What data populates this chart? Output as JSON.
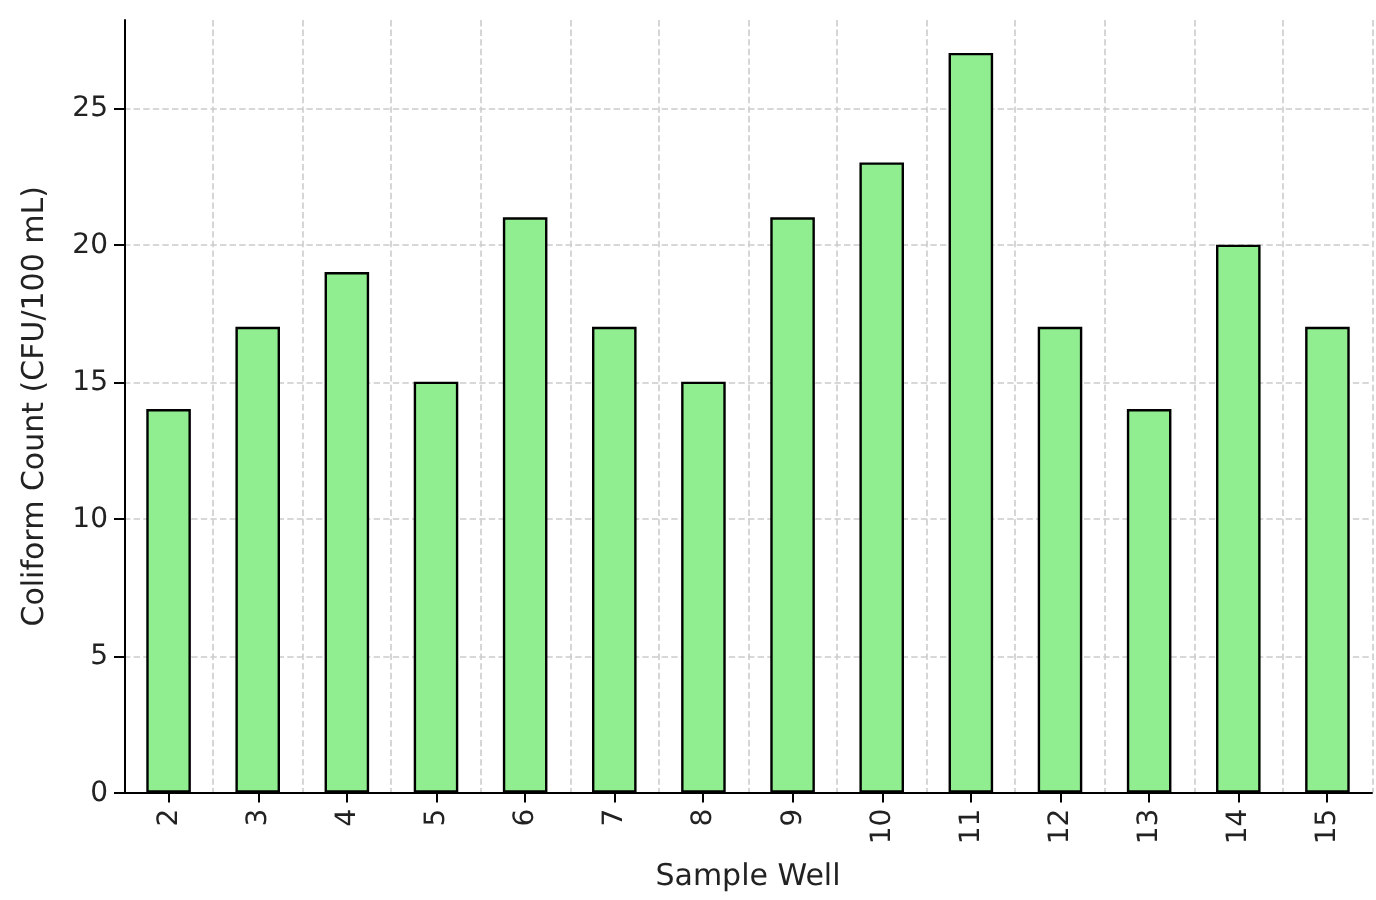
{
  "chart_data": {
    "type": "bar",
    "xlabel": "Sample Well",
    "ylabel": "Coliform Count (CFU/100 mL)",
    "categories": [
      "2",
      "3",
      "4",
      "5",
      "6",
      "7",
      "8",
      "9",
      "10",
      "11",
      "12",
      "13",
      "14",
      "15"
    ],
    "values": [
      14,
      17,
      19,
      15,
      21,
      17,
      15,
      21,
      23,
      27,
      17,
      14,
      20,
      17
    ],
    "color": "#90ee90",
    "ylim": [
      0,
      28.2
    ],
    "yticks": [
      0,
      5,
      10,
      15,
      20,
      25
    ],
    "grid": true
  }
}
